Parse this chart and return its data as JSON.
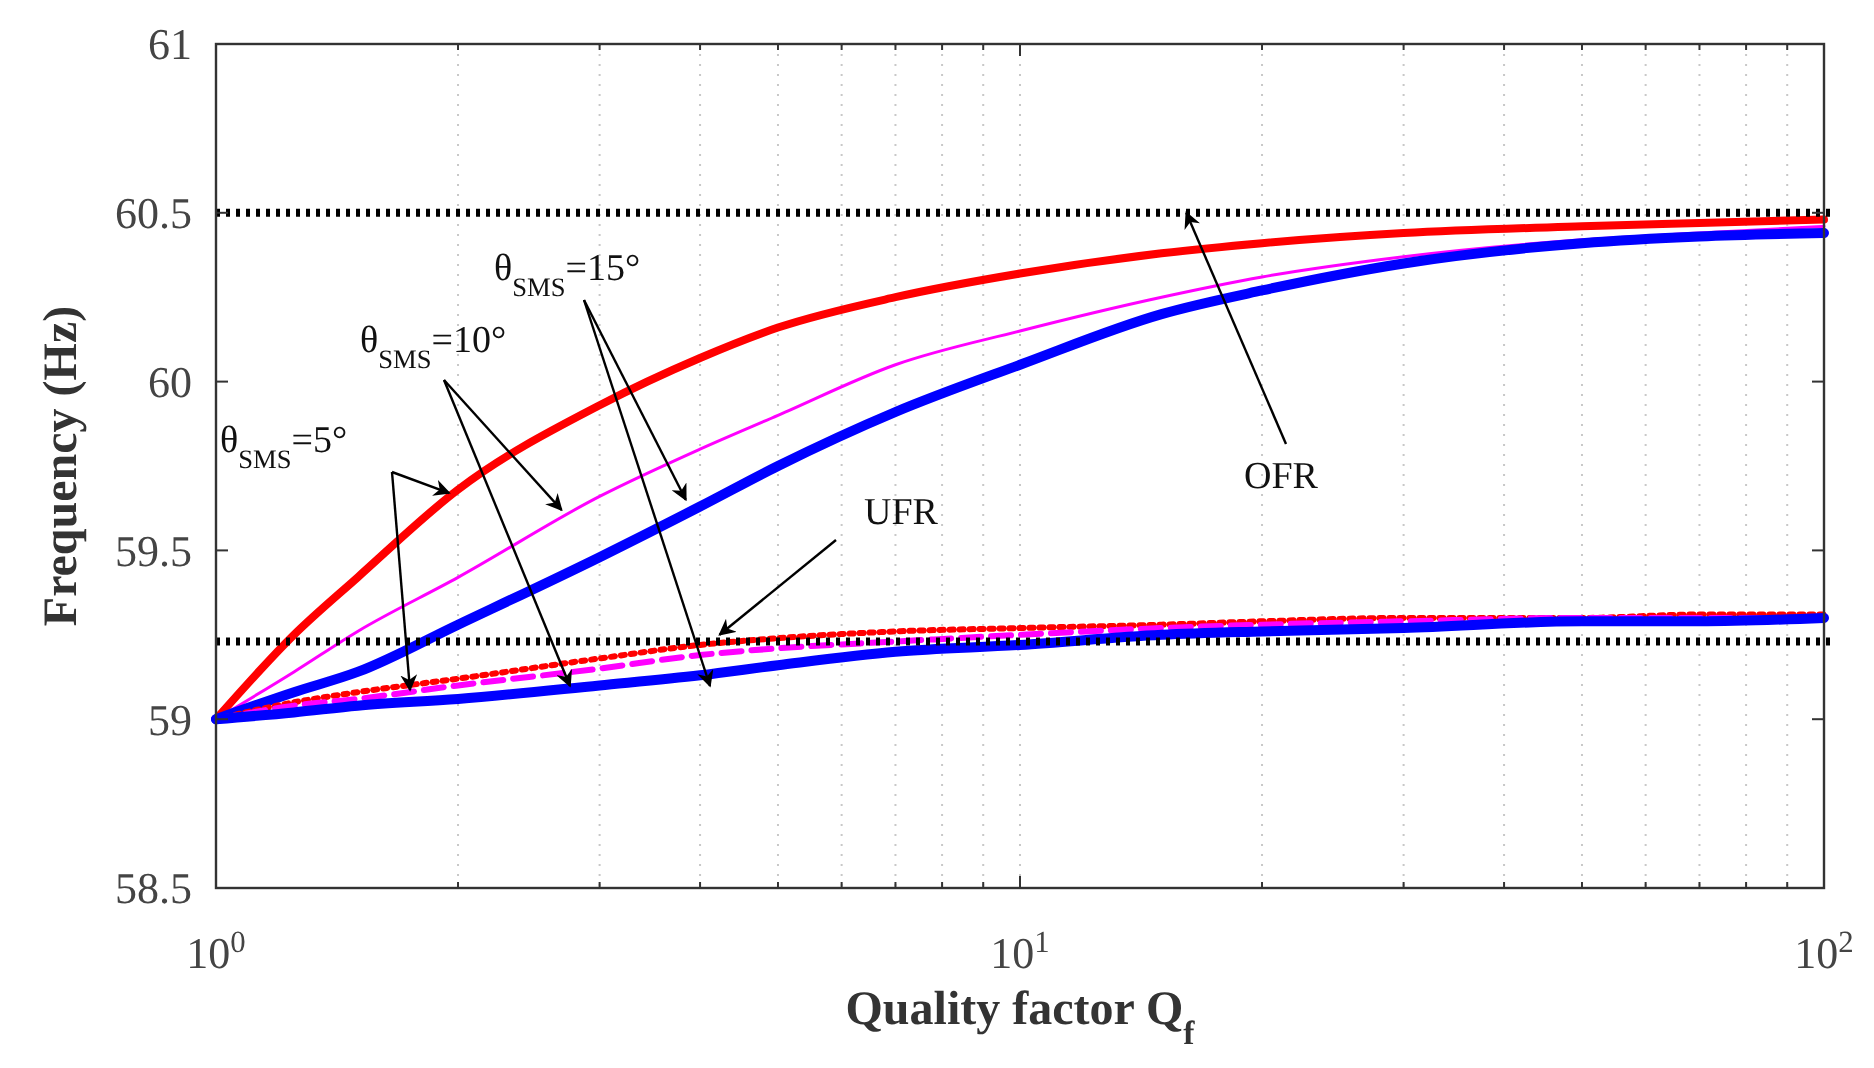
{
  "chart_data": {
    "type": "line",
    "xlabel": "Quality factor  Q$_{f}$",
    "ylabel": "Frequency (Hz)",
    "log": "x",
    "xlim": [
      1,
      100
    ],
    "ylim": [
      58.5,
      61
    ],
    "xticks": [
      {
        "value": 1,
        "label": "10$^{0}$"
      },
      {
        "value": 2,
        "label": null
      },
      {
        "value": 3,
        "label": null
      },
      {
        "value": 4,
        "label": null
      },
      {
        "value": 5,
        "label": null
      },
      {
        "value": 6,
        "label": null
      },
      {
        "value": 7,
        "label": null
      },
      {
        "value": 8,
        "label": null
      },
      {
        "value": 9,
        "label": null
      },
      {
        "value": 10,
        "label": "10$^{1}$"
      },
      {
        "value": 20,
        "label": null
      },
      {
        "value": 30,
        "label": null
      },
      {
        "value": 40,
        "label": null
      },
      {
        "value": 50,
        "label": null
      },
      {
        "value": 60,
        "label": null
      },
      {
        "value": 70,
        "label": null
      },
      {
        "value": 80,
        "label": null
      },
      {
        "value": 90,
        "label": null
      },
      {
        "value": 100,
        "label": "10$^{2}$"
      }
    ],
    "yticks": [
      58.5,
      59,
      59.5,
      60,
      60.5,
      61
    ],
    "grid": "x",
    "x": [
      1,
      1.25,
      1.5,
      2,
      3,
      4,
      5,
      7,
      10,
      15,
      20,
      30,
      50,
      70,
      100
    ],
    "series": [
      {
        "color": "#ff0000",
        "line_style": "solid",
        "values": [
          59,
          59.25,
          59.42,
          59.68,
          59.93,
          60.07,
          60.16,
          60.25,
          60.32,
          60.38,
          60.41,
          60.44,
          60.46,
          60.47,
          60.48
        ]
      },
      {
        "color": "#ff00ff",
        "line_style": "solid",
        "values": [
          59,
          59.14,
          59.26,
          59.42,
          59.66,
          59.8,
          59.9,
          60.05,
          60.15,
          60.25,
          60.31,
          60.37,
          60.42,
          60.44,
          60.46
        ]
      },
      {
        "color": "#0000ff",
        "line_style": "solid",
        "values": [
          59,
          59.08,
          59.14,
          59.28,
          59.48,
          59.63,
          59.75,
          59.91,
          60.05,
          60.2,
          60.27,
          60.35,
          60.41,
          60.43,
          60.44
        ]
      },
      {
        "color": "#ff0000",
        "line_style": "dotted",
        "values": [
          59,
          59.05,
          59.08,
          59.12,
          59.18,
          59.22,
          59.24,
          59.26,
          59.27,
          59.28,
          59.29,
          59.3,
          59.3,
          59.31,
          59.31
        ]
      },
      {
        "color": "#ff00ff",
        "line_style": "dashed",
        "values": [
          59,
          59.04,
          59.06,
          59.1,
          59.15,
          59.19,
          59.21,
          59.23,
          59.25,
          59.27,
          59.28,
          59.29,
          59.3,
          59.3,
          59.3
        ]
      },
      {
        "color": "#0000ff",
        "line_style": "solid",
        "values": [
          59,
          59.02,
          59.04,
          59.06,
          59.1,
          59.13,
          59.16,
          59.2,
          59.22,
          59.25,
          59.26,
          59.27,
          59.29,
          59.29,
          59.3
        ]
      }
    ],
    "ref_lines": [
      {
        "axis": "y",
        "value": 60.5,
        "color": "#000000",
        "line_style": "dotted"
      },
      {
        "axis": "y",
        "value": 59.23,
        "color": "#000000",
        "line_style": "dotted"
      }
    ],
    "annotations": [
      {
        "text": "θ$_{SMS}$=5°",
        "x": 1.95,
        "y": 59.67
      },
      {
        "text": "θ$_{SMS}$=10°",
        "x": 2.69,
        "y": 59.62
      },
      {
        "text": "θ$_{SMS}$=15°",
        "x": 3.84,
        "y": 59.65
      },
      {
        "text": "UFR",
        "x": 4.23,
        "y": 59.25
      },
      {
        "text": "OFR",
        "x": 16.1,
        "y": 60.5
      }
    ]
  }
}
